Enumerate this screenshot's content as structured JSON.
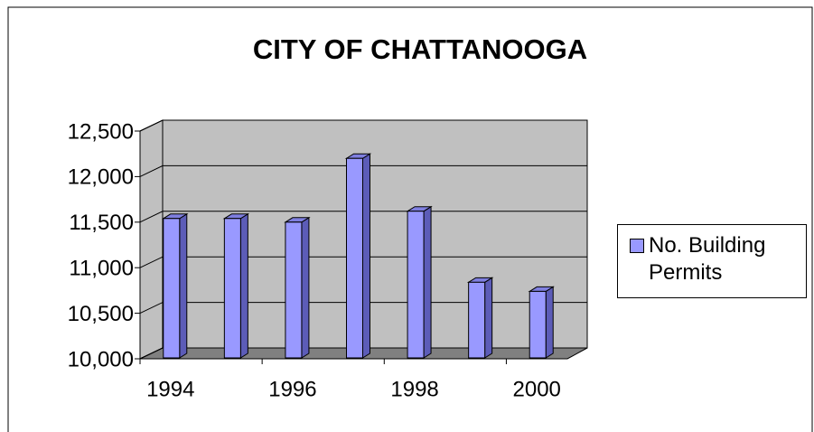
{
  "chart_data": {
    "type": "bar",
    "title": "CITY OF CHATTANOOGA",
    "categories": [
      "1994",
      null,
      "1996",
      null,
      "1998",
      null,
      "2000"
    ],
    "series": [
      {
        "name": "No. Building Permits",
        "color": "#9999ff",
        "values": [
          11540,
          11540,
          11500,
          12200,
          11620,
          10840,
          10740
        ]
      }
    ],
    "ylim": [
      10000,
      12500
    ],
    "yticks": [
      {
        "value": 10000,
        "label": "10,000"
      },
      {
        "value": 10500,
        "label": "10,500"
      },
      {
        "value": 11000,
        "label": "11,000"
      },
      {
        "value": 11500,
        "label": "11,500"
      },
      {
        "value": 12000,
        "label": "12,000"
      },
      {
        "value": 12500,
        "label": "12,500"
      }
    ],
    "grid": true
  }
}
